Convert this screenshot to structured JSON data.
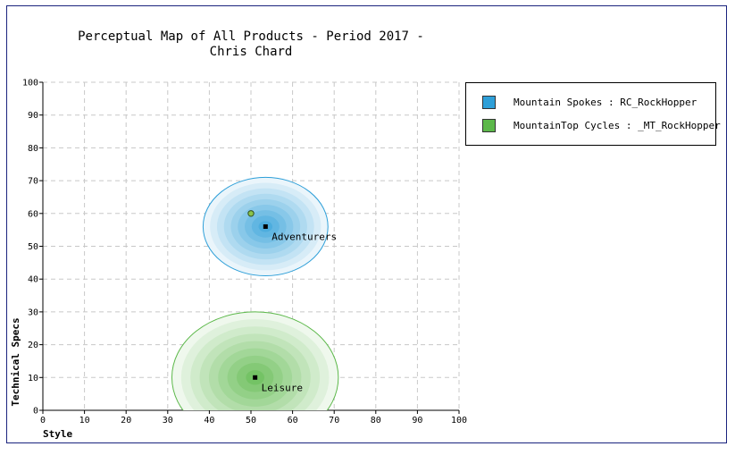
{
  "chart_data": {
    "type": "scatter",
    "title": "Perceptual Map of All Products - Period 2017 -\nChris Chard",
    "xlabel": "Style",
    "ylabel": "Technical Specs",
    "xlim": [
      0,
      100
    ],
    "ylim": [
      0,
      100
    ],
    "xticks": [
      0,
      10,
      20,
      30,
      40,
      50,
      60,
      70,
      80,
      90,
      100
    ],
    "yticks": [
      0,
      10,
      20,
      30,
      40,
      50,
      60,
      70,
      80,
      90,
      100
    ],
    "grid": true,
    "legend_position": "right",
    "series": [
      {
        "name": "Mountain Spokes : RC_RockHopper",
        "color": "#2e9fd8",
        "points": [
          {
            "x": 50,
            "y": 60
          }
        ]
      },
      {
        "name": "MountainTop Cycles : _MT_RockHopper",
        "color": "#5cb84a",
        "points": []
      }
    ],
    "segments": [
      {
        "label": "Adventurers",
        "center": [
          53.5,
          56
        ],
        "radius": [
          15,
          15
        ],
        "color": "#2e9fd8"
      },
      {
        "label": "Leisure",
        "center": [
          51,
          10
        ],
        "radius": [
          20,
          20
        ],
        "color": "#5cb84a"
      }
    ]
  }
}
